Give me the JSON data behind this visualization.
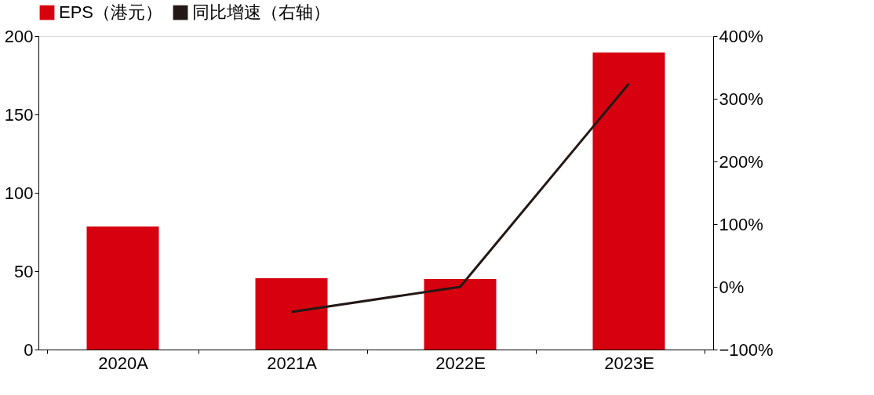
{
  "chart_data": {
    "type": "bar",
    "categories": [
      "2020A",
      "2021A",
      "2022E",
      "2023E"
    ],
    "series": [
      {
        "name": "EPS（港元）",
        "color": "#d7000f",
        "values": [
          78.5,
          45.5,
          45,
          189.5
        ]
      },
      {
        "name": "同比增速（右轴）",
        "type": "line",
        "axis": "y2",
        "color": "#231815",
        "values": [
          null,
          -40,
          0,
          324
        ]
      }
    ],
    "ylim": [
      0,
      200
    ],
    "yticks": [
      0,
      50,
      100,
      150,
      200
    ],
    "y2lim": [
      -100,
      400
    ],
    "y2ticks": [
      {
        "value": -100,
        "label": "−100%"
      },
      {
        "value": 0,
        "label": "0%"
      },
      {
        "value": 100,
        "label": "100%"
      },
      {
        "value": 200,
        "label": "200%"
      },
      {
        "value": 300,
        "label": "300%"
      },
      {
        "value": 400,
        "label": "400%"
      }
    ],
    "legend": "top",
    "grid": false
  }
}
